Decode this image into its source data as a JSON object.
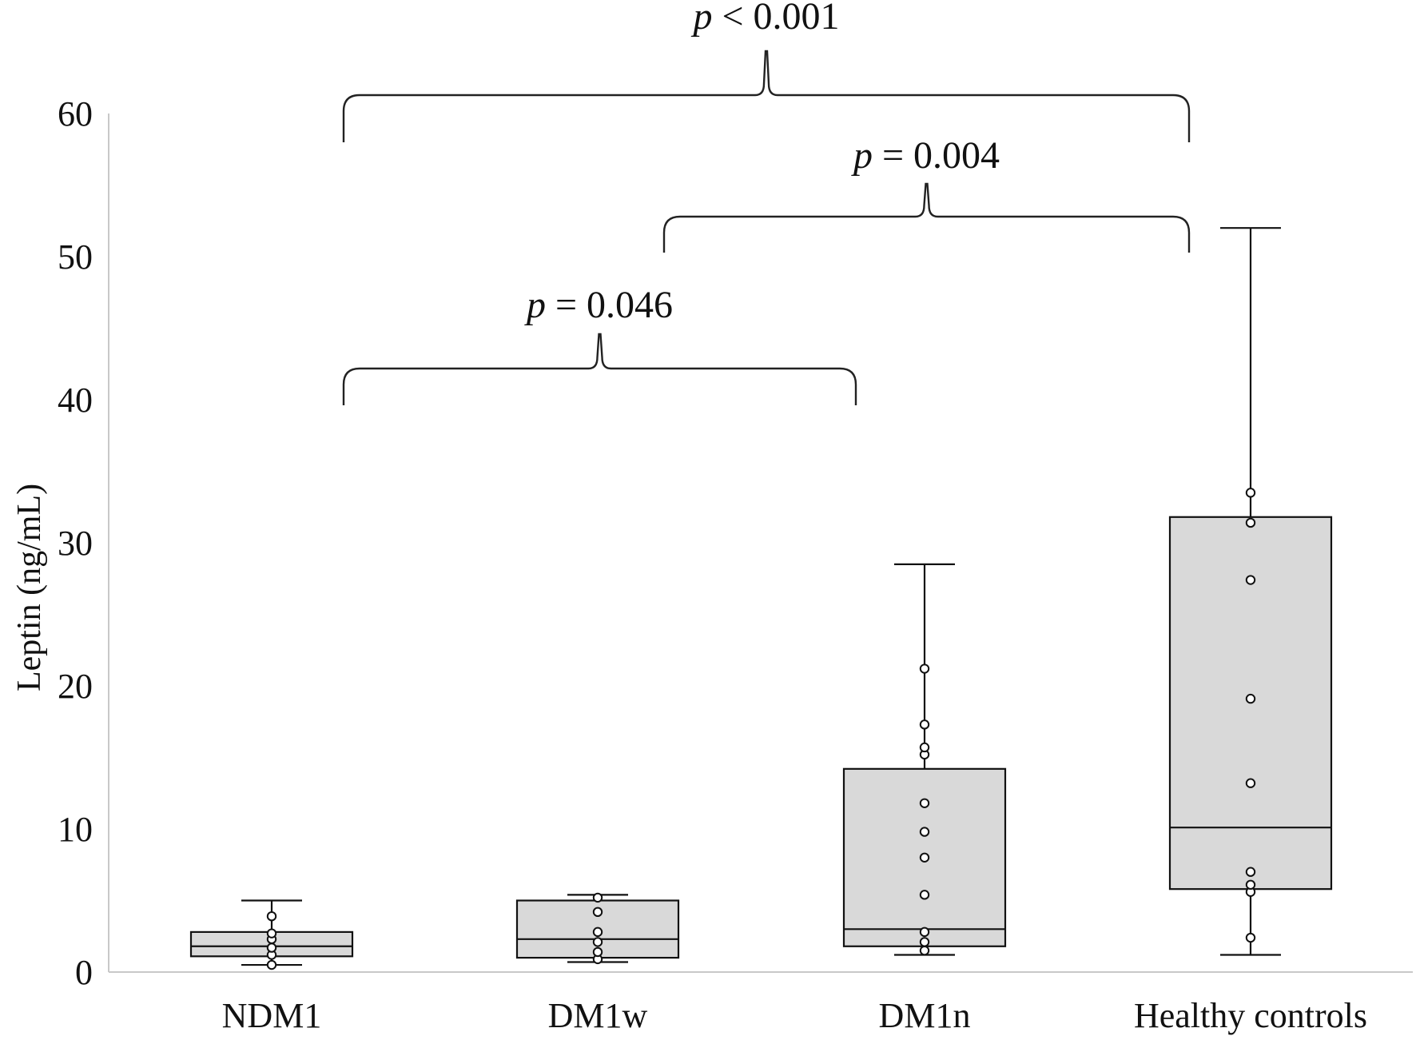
{
  "chart_data": {
    "type": "box",
    "ylabel": "Leptin (ng/mL)",
    "xlabel": "",
    "ylim": [
      0,
      60
    ],
    "yticks": [
      0,
      10,
      20,
      30,
      40,
      50,
      60
    ],
    "grid": false,
    "box_fill": "#d9d9d9",
    "categories": [
      "NDM1",
      "DM1w",
      "DM1n",
      "Healthy controls"
    ],
    "boxes": [
      {
        "name": "NDM1",
        "min": 0.5,
        "q1": 1.1,
        "median": 1.8,
        "q3": 2.8,
        "max": 5.0,
        "points": [
          0.5,
          1.2,
          1.7,
          2.3,
          2.7,
          3.9
        ]
      },
      {
        "name": "DM1w",
        "min": 0.7,
        "q1": 1.0,
        "median": 2.3,
        "q3": 5.0,
        "max": 5.4,
        "points": [
          0.9,
          1.4,
          2.1,
          2.8,
          4.2,
          5.2
        ]
      },
      {
        "name": "DM1n",
        "min": 1.2,
        "q1": 1.8,
        "median": 3.0,
        "q3": 14.2,
        "max": 28.5,
        "points": [
          1.5,
          2.1,
          2.8,
          5.4,
          8.0,
          9.8,
          11.8,
          15.2,
          15.7,
          17.3,
          21.2
        ]
      },
      {
        "name": "Healthy controls",
        "min": 1.2,
        "q1": 5.8,
        "median": 10.1,
        "q3": 31.8,
        "max": 52.0,
        "points": [
          2.4,
          5.6,
          6.1,
          7.0,
          13.2,
          19.1,
          27.4,
          31.4,
          33.5
        ]
      }
    ],
    "annotations": [
      {
        "from": "NDM1",
        "to": "Healthy controls",
        "p_symbol": "p",
        "text": " < 0.001"
      },
      {
        "from": "DM1w",
        "to": "Healthy controls",
        "p_symbol": "p",
        "text": " = 0.004"
      },
      {
        "from": "NDM1",
        "to": "DM1n",
        "p_symbol": "p",
        "text": " = 0.046"
      }
    ]
  }
}
